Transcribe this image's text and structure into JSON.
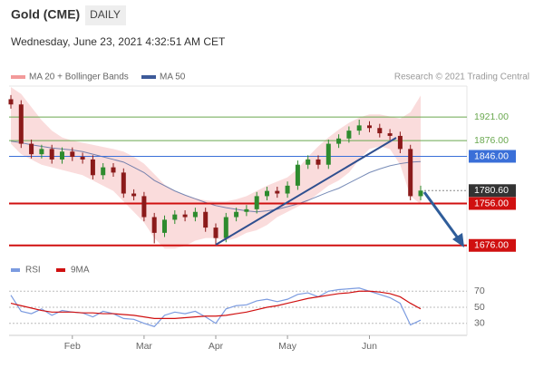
{
  "header": {
    "title": "Gold (CME)",
    "interval": "DAILY",
    "timestamp": "Wednesday, June 23, 2021 4:32:51 AM CET",
    "credit": "Research © 2021 Trading Central"
  },
  "chart_data": [
    {
      "type": "candlestick",
      "ylim": [
        1660,
        1980
      ],
      "up_color": "#2e8b2e",
      "down_color": "#8b1a1a",
      "open": [
        1955,
        1945,
        1870,
        1850,
        1860,
        1840,
        1855,
        1845,
        1840,
        1810,
        1825,
        1815,
        1775,
        1770,
        1730,
        1700,
        1725,
        1735,
        1730,
        1740,
        1710,
        1690,
        1730,
        1740,
        1745,
        1770,
        1780,
        1775,
        1790,
        1830,
        1840,
        1830,
        1870,
        1880,
        1895,
        1905,
        1900,
        1890,
        1885,
        1860,
        1770
      ],
      "high": [
        1963,
        1953,
        1878,
        1868,
        1868,
        1863,
        1863,
        1853,
        1848,
        1833,
        1833,
        1823,
        1783,
        1778,
        1738,
        1733,
        1743,
        1743,
        1748,
        1748,
        1718,
        1738,
        1748,
        1753,
        1778,
        1788,
        1788,
        1798,
        1838,
        1848,
        1848,
        1878,
        1888,
        1903,
        1916,
        1913,
        1908,
        1898,
        1893,
        1868,
        1790
      ],
      "low": [
        1937,
        1862,
        1842,
        1842,
        1832,
        1832,
        1837,
        1832,
        1802,
        1802,
        1807,
        1767,
        1762,
        1722,
        1680,
        1692,
        1717,
        1722,
        1722,
        1702,
        1677,
        1682,
        1722,
        1732,
        1737,
        1762,
        1767,
        1767,
        1782,
        1822,
        1822,
        1822,
        1862,
        1872,
        1887,
        1892,
        1882,
        1877,
        1852,
        1762,
        1762
      ],
      "close": [
        1945,
        1870,
        1850,
        1860,
        1840,
        1855,
        1845,
        1840,
        1810,
        1825,
        1815,
        1775,
        1770,
        1730,
        1700,
        1725,
        1735,
        1730,
        1740,
        1710,
        1690,
        1730,
        1740,
        1745,
        1770,
        1780,
        1775,
        1790,
        1830,
        1840,
        1830,
        1870,
        1880,
        1895,
        1905,
        1900,
        1890,
        1885,
        1860,
        1770,
        1780.6
      ],
      "series": [
        {
          "name": "MA 20 + Bollinger Bands",
          "color": "#f29a9a",
          "upper": [
            1978,
            1965,
            1940,
            1915,
            1895,
            1882,
            1876,
            1872,
            1868,
            1864,
            1860,
            1855,
            1845,
            1832,
            1812,
            1792,
            1780,
            1772,
            1766,
            1762,
            1760,
            1760,
            1764,
            1770,
            1780,
            1790,
            1798,
            1806,
            1822,
            1845,
            1865,
            1882,
            1897,
            1910,
            1920,
            1926,
            1926,
            1922,
            1918,
            1930,
            1962
          ],
          "lower": [
            1870,
            1850,
            1840,
            1830,
            1825,
            1820,
            1815,
            1810,
            1800,
            1790,
            1780,
            1760,
            1740,
            1720,
            1690,
            1670,
            1670,
            1675,
            1685,
            1690,
            1690,
            1685,
            1690,
            1700,
            1705,
            1715,
            1730,
            1740,
            1750,
            1760,
            1775,
            1790,
            1800,
            1815,
            1840,
            1860,
            1865,
            1860,
            1830,
            1770,
            1755
          ]
        },
        {
          "name": "MA 50",
          "color": "#3d5a99",
          "values": [
            1875,
            1872,
            1868,
            1865,
            1862,
            1860,
            1858,
            1855,
            1850,
            1845,
            1840,
            1835,
            1825,
            1815,
            1800,
            1790,
            1780,
            1772,
            1765,
            1758,
            1752,
            1748,
            1745,
            1742,
            1740,
            1742,
            1745,
            1750,
            1755,
            1762,
            1770,
            1778,
            1785,
            1795,
            1805,
            1815,
            1822,
            1828,
            1832,
            1835,
            1836
          ]
        }
      ],
      "levels": [
        {
          "value": 1921,
          "label": "1921.00",
          "color": "#6aa84f",
          "boxed": false
        },
        {
          "value": 1876,
          "label": "1876.00",
          "color": "#6aa84f",
          "boxed": false
        },
        {
          "value": 1846,
          "label": "1846.00",
          "color": "#3a6fd8",
          "boxed": true
        },
        {
          "value": 1780.6,
          "label": "1780.60",
          "color": "#333333",
          "boxed": true
        },
        {
          "value": 1756,
          "label": "1756.00",
          "color": "#d01010",
          "boxed": true
        },
        {
          "value": 1676,
          "label": "1676.00",
          "color": "#d01010",
          "boxed": true
        }
      ]
    },
    {
      "type": "line",
      "ylim": [
        15,
        85
      ],
      "yticks": [
        70,
        50,
        30
      ],
      "categories": [
        null,
        null,
        null,
        null,
        null,
        null,
        "Feb",
        null,
        null,
        null,
        null,
        null,
        null,
        "Mar",
        null,
        null,
        null,
        null,
        null,
        null,
        "Apr",
        null,
        null,
        null,
        null,
        null,
        null,
        "May",
        null,
        null,
        null,
        null,
        null,
        null,
        null,
        "Jun",
        null,
        null,
        null,
        null,
        null
      ],
      "series": [
        {
          "name": "RSI",
          "color": "#7b9be0",
          "values": [
            65,
            45,
            42,
            48,
            40,
            46,
            44,
            43,
            38,
            45,
            42,
            36,
            35,
            30,
            26,
            40,
            44,
            42,
            45,
            38,
            30,
            48,
            52,
            53,
            58,
            60,
            57,
            60,
            66,
            68,
            63,
            70,
            72,
            73,
            74,
            70,
            66,
            62,
            55,
            28,
            34
          ]
        },
        {
          "name": "9MA",
          "color": "#d01010",
          "values": [
            55,
            52,
            49,
            46,
            44,
            44,
            44,
            43,
            43,
            42,
            42,
            41,
            40,
            38,
            36,
            36,
            36,
            37,
            38,
            39,
            39,
            40,
            42,
            44,
            47,
            50,
            52,
            55,
            58,
            61,
            63,
            65,
            67,
            68,
            70,
            70,
            69,
            67,
            63,
            55,
            48
          ]
        }
      ]
    }
  ]
}
